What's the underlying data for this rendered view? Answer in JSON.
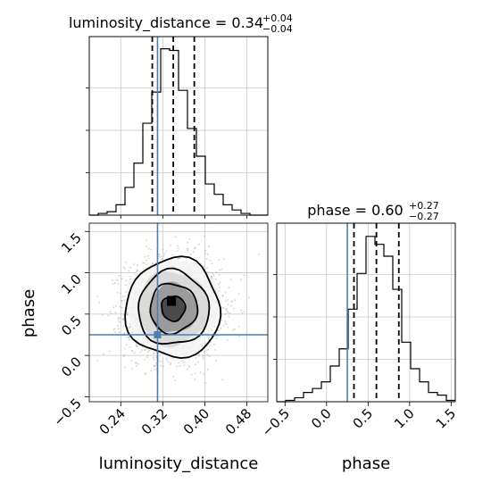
{
  "chart_data": {
    "type": "corner",
    "params": [
      "luminosity_distance",
      "phase"
    ],
    "truth": {
      "luminosity_distance": 0.31,
      "phase": 0.25
    },
    "colors": {
      "truth": "#4a7fb0",
      "hist": "#000000",
      "grid": "#c8c8c8",
      "scatter": "#9a9a9a"
    },
    "diagonal": [
      {
        "param": "luminosity_distance",
        "title_prefix": "luminosity_distance = ",
        "median_text": "0.34",
        "upper_text": "+0.04",
        "lower_text": "−0.04",
        "quantiles": [
          0.3,
          0.34,
          0.38
        ],
        "xlim": [
          0.18,
          0.52
        ],
        "bin_edges": [
          0.18,
          0.197,
          0.214,
          0.231,
          0.248,
          0.265,
          0.282,
          0.299,
          0.316,
          0.333,
          0.35,
          0.367,
          0.384,
          0.401,
          0.418,
          0.435,
          0.452,
          0.469,
          0.486,
          0.503,
          0.52
        ],
        "counts": [
          0,
          1,
          2,
          6,
          16,
          30,
          53,
          71,
          96,
          95,
          72,
          50,
          34,
          18,
          12,
          6,
          3,
          1,
          0,
          0
        ],
        "ymax": 103
      },
      {
        "param": "phase",
        "title_prefix": "phase = ",
        "median_text": "0.60",
        "upper_text": "+0.27",
        "lower_text": "−0.27",
        "quantiles": [
          0.33,
          0.6,
          0.87
        ],
        "xlim": [
          -0.6,
          1.55
        ],
        "bin_edges": [
          -0.6,
          -0.4925,
          -0.385,
          -0.2775,
          -0.17,
          -0.0625,
          0.045,
          0.1525,
          0.26,
          0.3675,
          0.475,
          0.5825,
          0.69,
          0.7975,
          0.905,
          1.0125,
          1.12,
          1.2275,
          1.335,
          1.4425,
          1.55
        ],
        "counts": [
          0,
          1,
          3,
          7,
          10,
          15,
          27,
          40,
          70,
          97,
          125,
          119,
          110,
          85,
          45,
          25,
          15,
          7,
          5,
          1
        ],
        "ymax": 135
      }
    ],
    "joint": {
      "x_param": "luminosity_distance",
      "y_param": "phase",
      "xlim": [
        0.18,
        0.52
      ],
      "ylim": [
        -0.56,
        1.6
      ],
      "center": [
        0.34,
        0.57
      ],
      "sigma": [
        0.045,
        0.3
      ],
      "n_scatter": 2400,
      "contour_levels_sigma": [
        0.5,
        1.0,
        1.5,
        2.0
      ]
    },
    "axes": {
      "xticks_ld": [
        0.24,
        0.32,
        0.4,
        0.48
      ],
      "xticklabels_ld": [
        "0.24",
        "0.32",
        "0.40",
        "0.48"
      ],
      "yticks_phase": [
        -0.5,
        0.0,
        0.5,
        1.0,
        1.5
      ],
      "yticklabels_phase": [
        "−0.5",
        "0.0",
        "0.5",
        "1.0",
        "1.5"
      ],
      "xticks_phase": [
        -0.5,
        0.0,
        0.5,
        1.0,
        1.5
      ],
      "xticklabels_phase": [
        "−0.5",
        "0.0",
        "0.5",
        "1.0",
        "1.5"
      ],
      "xlabel_left": "luminosity_distance",
      "ylabel_left": "phase",
      "xlabel_right": "phase"
    },
    "grid": true
  }
}
